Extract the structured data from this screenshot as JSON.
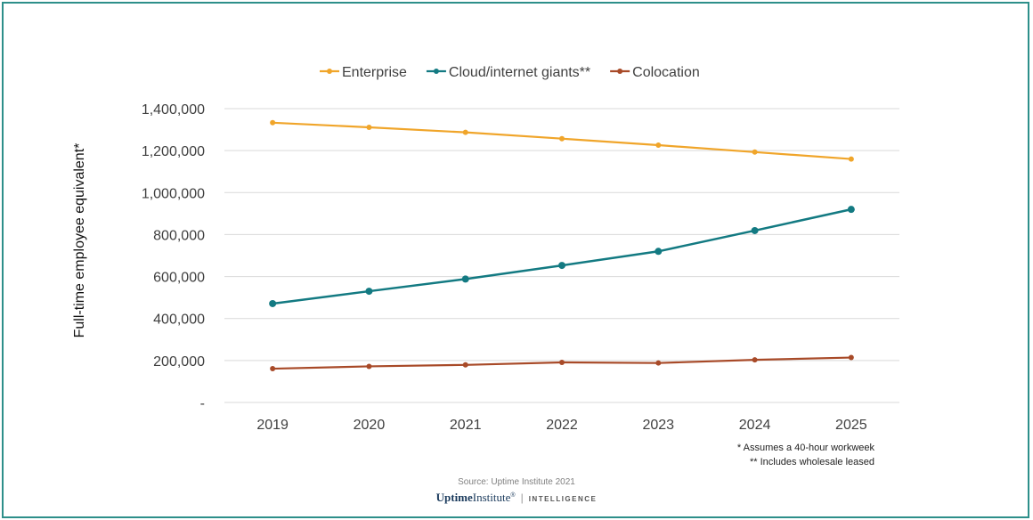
{
  "chart_data": {
    "type": "line",
    "categories": [
      "2019",
      "2020",
      "2021",
      "2022",
      "2023",
      "2024",
      "2025"
    ],
    "series": [
      {
        "name": "Enterprise",
        "color": "#f0a52a",
        "values": [
          1333000,
          1311000,
          1287000,
          1257000,
          1226000,
          1193000,
          1160000
        ]
      },
      {
        "name": "Cloud/internet giants**",
        "color": "#137a82",
        "values": [
          471000,
          530000,
          588000,
          653000,
          720000,
          819000,
          920000
        ]
      },
      {
        "name": "Colocation",
        "color": "#a84a28",
        "values": [
          161000,
          172000,
          179000,
          191000,
          188000,
          203000,
          214000
        ]
      }
    ],
    "ylabel": "Full-time employee equivalent*",
    "ylim": [
      0,
      1400000
    ],
    "yticks": [
      "-",
      "200,000",
      "400,000",
      "600,000",
      "800,000",
      "1,000,000",
      "1,200,000",
      "1,400,000"
    ],
    "grid": true,
    "legend_position": "top-center"
  },
  "notes": {
    "assumption": "* Assumes a 40-hour workweek",
    "wholesale": "** Includes wholesale leased"
  },
  "source": "Source: Uptime Institute 2021",
  "brand": {
    "uptime": "Uptime",
    "institute": "Institute",
    "mark": "®",
    "divider": "|",
    "intelligence": "INTELLIGENCE"
  }
}
